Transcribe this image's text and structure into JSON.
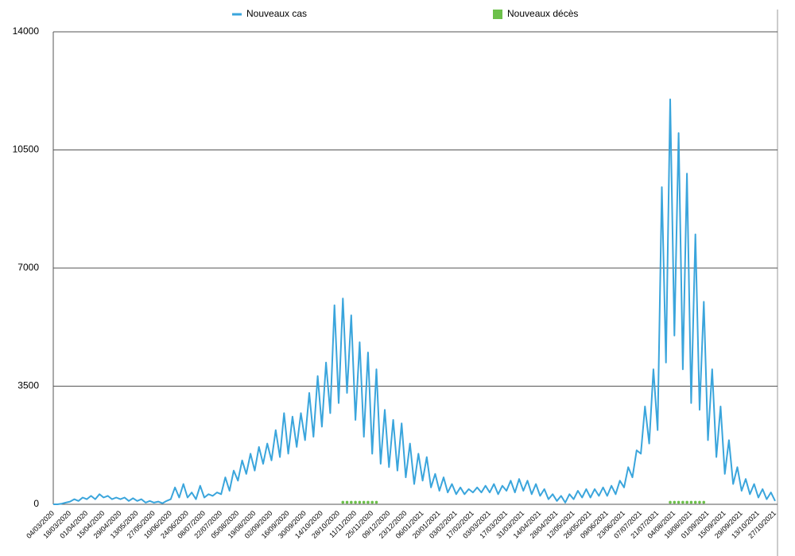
{
  "chart_data": {
    "type": "line",
    "categories": [
      "04/03/2020",
      null,
      null,
      null,
      "18/03/2020",
      null,
      null,
      null,
      "01/04/2020",
      null,
      null,
      null,
      "15/04/2020",
      null,
      null,
      null,
      "29/04/2020",
      null,
      null,
      null,
      "13/05/2020",
      null,
      null,
      null,
      "27/05/2020",
      null,
      null,
      null,
      "10/06/2020",
      null,
      null,
      null,
      "24/06/2020",
      null,
      null,
      null,
      "08/07/2020",
      null,
      null,
      null,
      "22/07/2020",
      null,
      null,
      null,
      "05/08/2020",
      null,
      null,
      null,
      "19/08/2020",
      null,
      null,
      null,
      "02/09/2020",
      null,
      null,
      null,
      "16/09/2020",
      null,
      null,
      null,
      "30/09/2020",
      null,
      null,
      null,
      "14/10/2020",
      null,
      null,
      null,
      "28/10/2020",
      null,
      null,
      null,
      "11/11/2020",
      null,
      null,
      null,
      "25/11/2020",
      null,
      null,
      null,
      "09/12/2020",
      null,
      null,
      null,
      "23/12/2020",
      null,
      null,
      null,
      "06/01/2021",
      null,
      null,
      null,
      "20/01/2021",
      null,
      null,
      null,
      "03/02/2021",
      null,
      null,
      null,
      "17/02/2021",
      null,
      null,
      null,
      "03/03/2021",
      null,
      null,
      null,
      "17/03/2021",
      null,
      null,
      null,
      "31/03/2021",
      null,
      null,
      null,
      "14/04/2021",
      null,
      null,
      null,
      "28/04/2021",
      null,
      null,
      null,
      "12/05/2021",
      null,
      null,
      null,
      "26/05/2021",
      null,
      null,
      null,
      "09/06/2021",
      null,
      null,
      null,
      "23/06/2021",
      null,
      null,
      null,
      "07/07/2021",
      null,
      null,
      null,
      "21/07/2021",
      null,
      null,
      null,
      "04/08/2021",
      null,
      null,
      null,
      "18/08/2021",
      null,
      null,
      null,
      "01/09/2021",
      null,
      null,
      null,
      "15/09/2021",
      null,
      null,
      null,
      "29/09/2021",
      null,
      null,
      null,
      "13/10/2021",
      null,
      null,
      null,
      "27/10/2021"
    ],
    "series": [
      {
        "name": "Nouveaux cas",
        "color": "#3aa5dc",
        "values": [
          0,
          0,
          20,
          50,
          80,
          150,
          100,
          200,
          150,
          250,
          150,
          300,
          200,
          250,
          150,
          200,
          150,
          200,
          100,
          180,
          100,
          150,
          50,
          100,
          50,
          80,
          30,
          100,
          150,
          500,
          200,
          600,
          200,
          350,
          150,
          550,
          200,
          300,
          250,
          350,
          300,
          800,
          400,
          1000,
          700,
          1300,
          900,
          1500,
          1000,
          1700,
          1200,
          1800,
          1300,
          2200,
          1400,
          2700,
          1500,
          2600,
          1700,
          2700,
          1900,
          3300,
          2000,
          3800,
          2300,
          4200,
          2700,
          5900,
          3000,
          6100,
          3300,
          5600,
          2500,
          4800,
          2000,
          4500,
          1500,
          4000,
          1200,
          2800,
          1100,
          2500,
          1000,
          2400,
          800,
          1800,
          600,
          1500,
          700,
          1400,
          500,
          900,
          400,
          800,
          350,
          600,
          300,
          500,
          300,
          450,
          350,
          500,
          350,
          550,
          350,
          600,
          300,
          550,
          400,
          700,
          350,
          750,
          400,
          700,
          300,
          600,
          250,
          450,
          150,
          300,
          100,
          250,
          50,
          300,
          150,
          400,
          200,
          450,
          200,
          450,
          250,
          500,
          250,
          550,
          300,
          700,
          500,
          1100,
          800,
          1600,
          1500,
          2900,
          1800,
          4000,
          2200,
          9400,
          4200,
          12000,
          5000,
          11000,
          4000,
          9800,
          3000,
          8000,
          2800,
          6000,
          1900,
          4000,
          1400,
          2900,
          900,
          1900,
          600,
          1100,
          400,
          750,
          300,
          600,
          200,
          450,
          150,
          350,
          100
        ]
      },
      {
        "name": "Nouveaux décès",
        "color": "#6cc04a",
        "values": [
          null,
          null,
          null,
          null,
          null,
          null,
          null,
          null,
          null,
          null,
          null,
          null,
          null,
          null,
          null,
          null,
          null,
          null,
          null,
          null,
          null,
          null,
          null,
          null,
          null,
          null,
          null,
          null,
          null,
          null,
          null,
          null,
          null,
          null,
          null,
          null,
          null,
          null,
          null,
          null,
          null,
          null,
          null,
          null,
          null,
          null,
          null,
          null,
          null,
          null,
          null,
          null,
          null,
          null,
          null,
          null,
          null,
          null,
          null,
          null,
          null,
          null,
          null,
          null,
          null,
          null,
          null,
          null,
          null,
          60,
          60,
          60,
          60,
          60,
          60,
          60,
          60,
          60,
          null,
          null,
          null,
          null,
          null,
          null,
          null,
          null,
          null,
          null,
          null,
          null,
          null,
          null,
          null,
          null,
          null,
          null,
          null,
          null,
          null,
          null,
          null,
          null,
          null,
          null,
          null,
          null,
          null,
          null,
          null,
          null,
          null,
          null,
          null,
          null,
          null,
          null,
          null,
          null,
          null,
          null,
          null,
          null,
          null,
          null,
          null,
          null,
          null,
          null,
          null,
          null,
          null,
          null,
          null,
          null,
          null,
          null,
          null,
          null,
          null,
          null,
          null,
          null,
          null,
          null,
          null,
          null,
          null,
          60,
          60,
          60,
          60,
          60,
          60,
          60,
          60,
          60,
          null,
          null,
          null,
          null,
          null,
          null,
          null,
          null,
          null,
          null,
          null,
          null,
          null,
          null,
          null,
          null,
          null
        ]
      }
    ],
    "ylim": [
      0,
      14000
    ],
    "yticks": [
      0,
      3500,
      7000,
      10500,
      14000
    ],
    "grid": true
  }
}
